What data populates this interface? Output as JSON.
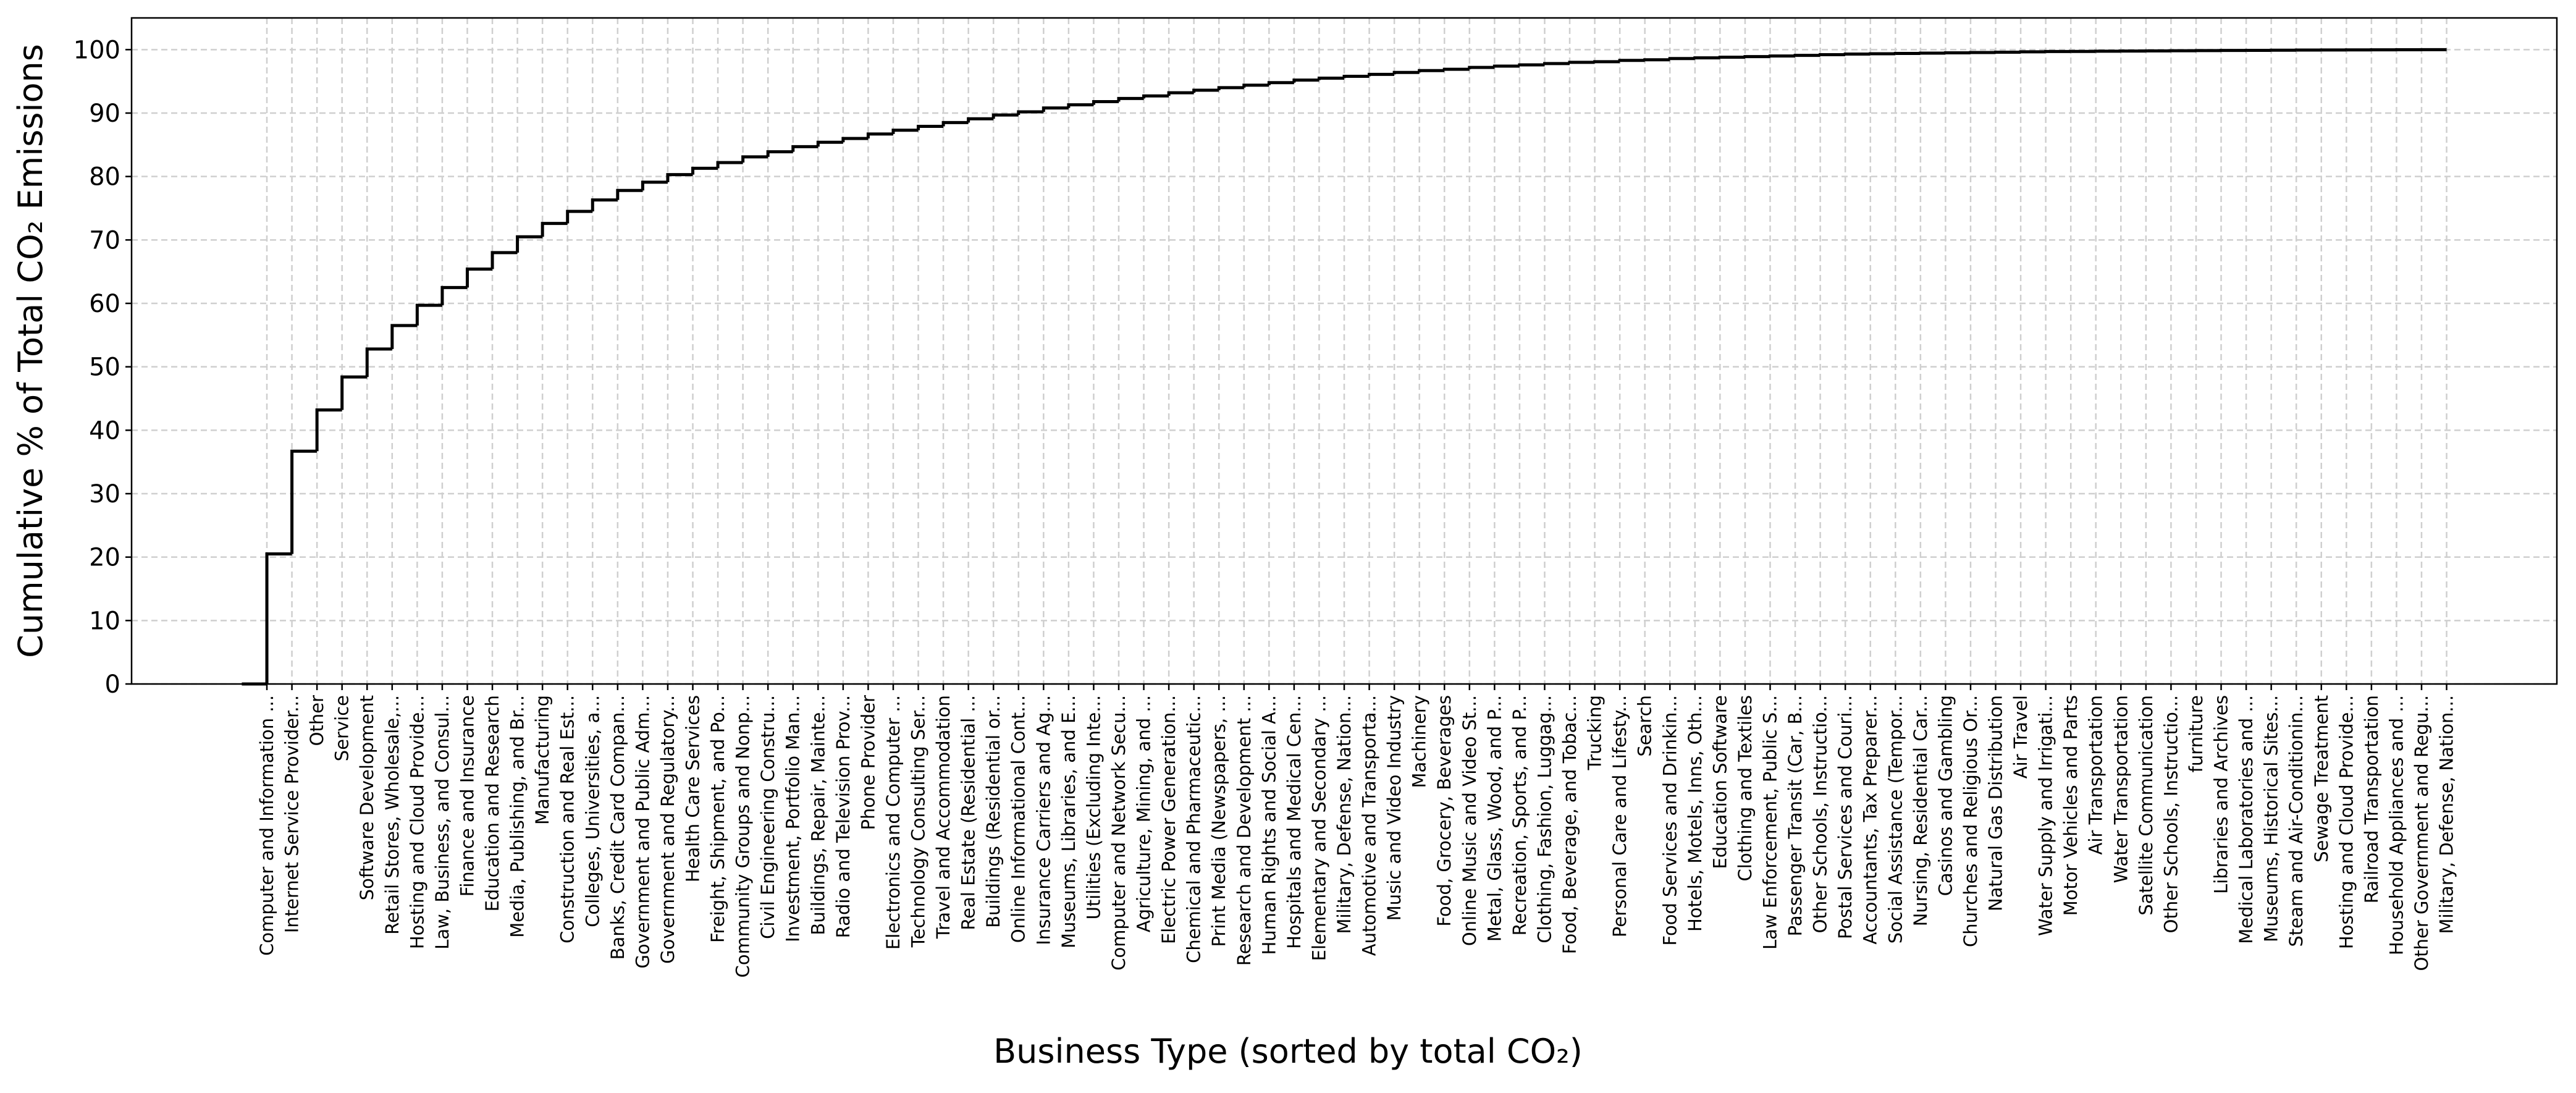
{
  "chart_data": {
    "type": "step",
    "xlabel": "Business Type (sorted by total CO₂)",
    "ylabel": "Cumulative % of Total CO₂ Emissions",
    "categories": [
      "Computer and Information ...",
      "Internet Service Provider...",
      "Other",
      "Service",
      "Software Development",
      "Retail Stores, Wholesale,...",
      "Hosting and Cloud Provide...",
      "Law, Business, and Consul...",
      "Finance and Insurance",
      "Education and Research",
      "Media, Publishing, and Br...",
      "Manufacturing",
      "Construction and Real Est...",
      "Colleges, Universities, a...",
      "Banks, Credit Card Compan...",
      "Government and Public Adm...",
      "Government and Regulatory...",
      "Health Care Services",
      "Freight, Shipment, and Po...",
      "Community Groups and Nonp...",
      "Civil Engineering Constru...",
      "Investment, Portfolio Man...",
      "Buildings, Repair, Mainte...",
      "Radio and Television Prov...",
      "Phone Provider",
      "Electronics and Computer ...",
      "Technology Consulting Ser...",
      "Travel and Accommodation",
      "Real Estate (Residential ...",
      "Buildings (Residential or...",
      "Online Informational Cont...",
      "Insurance Carriers and Ag...",
      "Museums, Libraries, and E...",
      "Utilities (Excluding Inte...",
      "Computer and Network Secu...",
      "Agriculture, Mining, and ...",
      "Electric Power Generation...",
      "Chemical and Pharmaceutic...",
      "Print Media (Newspapers, ...",
      "Research and Development ...",
      "Human Rights and Social A...",
      "Hospitals and Medical Cen...",
      "Elementary and Secondary ...",
      "Military, Defense, Nation...",
      "Automotive and Transporta...",
      "Music and Video Industry",
      "Machinery",
      "Food, Grocery, Beverages",
      "Online Music and Video St...",
      "Metal, Glass, Wood, and P...",
      "Recreation, Sports, and P...",
      "Clothing, Fashion, Luggag...",
      "Food, Beverage, and Tobac...",
      "Trucking",
      "Personal Care and Lifesty...",
      "Search",
      "Food Services and Drinkin...",
      "Hotels, Motels, Inns, Oth...",
      "Education Software",
      "Clothing and Textiles",
      "Law Enforcement, Public S...",
      "Passenger Transit (Car, B...",
      "Other Schools, Instructio...",
      "Postal Services and Couri...",
      "Accountants, Tax Preparer...",
      "Social Assistance (Tempor...",
      "Nursing, Residential Car...",
      "Casinos and Gambling",
      "Churches and Religious Or...",
      "Natural Gas Distribution",
      "Air Travel",
      "Water Supply and Irrigati...",
      "Motor Vehicles and Parts",
      "Air Transportation",
      "Water Transportation",
      "Satellite Communication",
      "Other Schools, Instructio...",
      "furniture",
      "Libraries and Archives",
      "Medical Laboratories and ...",
      "Museums, Historical Sites...",
      "Steam and Air-Conditionin...",
      "Sewage Treatment",
      "Hosting and Cloud Provide...",
      "Railroad Transportation",
      "Household Appliances and ...",
      "Other Government and Regu...",
      "Military, Defense, Nation..."
    ],
    "values": [
      20.5,
      36.7,
      43.2,
      48.4,
      52.8,
      56.5,
      59.7,
      62.5,
      65.4,
      68.0,
      70.5,
      72.6,
      74.5,
      76.3,
      77.8,
      79.1,
      80.3,
      81.3,
      82.2,
      83.1,
      83.9,
      84.7,
      85.4,
      86.0,
      86.7,
      87.3,
      87.9,
      88.5,
      89.1,
      89.7,
      90.2,
      90.8,
      91.3,
      91.8,
      92.3,
      92.7,
      93.2,
      93.6,
      94.0,
      94.4,
      94.8,
      95.2,
      95.5,
      95.8,
      96.1,
      96.4,
      96.7,
      96.9,
      97.2,
      97.4,
      97.6,
      97.8,
      98.0,
      98.1,
      98.3,
      98.4,
      98.6,
      98.7,
      98.8,
      98.9,
      99.0,
      99.1,
      99.2,
      99.3,
      99.35,
      99.4,
      99.45,
      99.5,
      99.55,
      99.6,
      99.65,
      99.7,
      99.72,
      99.75,
      99.78,
      99.8,
      99.83,
      99.85,
      99.87,
      99.89,
      99.91,
      99.93,
      99.95,
      99.96,
      99.97,
      99.98,
      99.99,
      100
    ],
    "color": "#000000",
    "ylim": [
      0,
      105
    ],
    "yticks": [
      0,
      10,
      20,
      30,
      40,
      50,
      60,
      70,
      80,
      90,
      100
    ],
    "grid": true
  }
}
